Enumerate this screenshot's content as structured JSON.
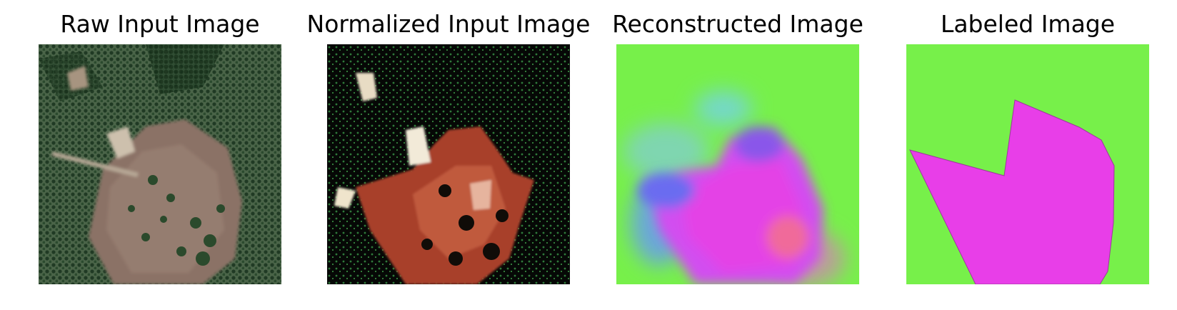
{
  "panels": [
    {
      "title": "Raw Input Image"
    },
    {
      "title": "Normalized Input Image"
    },
    {
      "title": "Reconstructed Image"
    },
    {
      "title": "Labeled Image"
    }
  ],
  "colors": {
    "label_background": "#77f04a",
    "label_region": "#e83ee8",
    "raw_forest": "#3d5a3c",
    "raw_clearing": "#8b7266",
    "normalized_background": "#050605",
    "normalized_region": "#a8402b"
  }
}
